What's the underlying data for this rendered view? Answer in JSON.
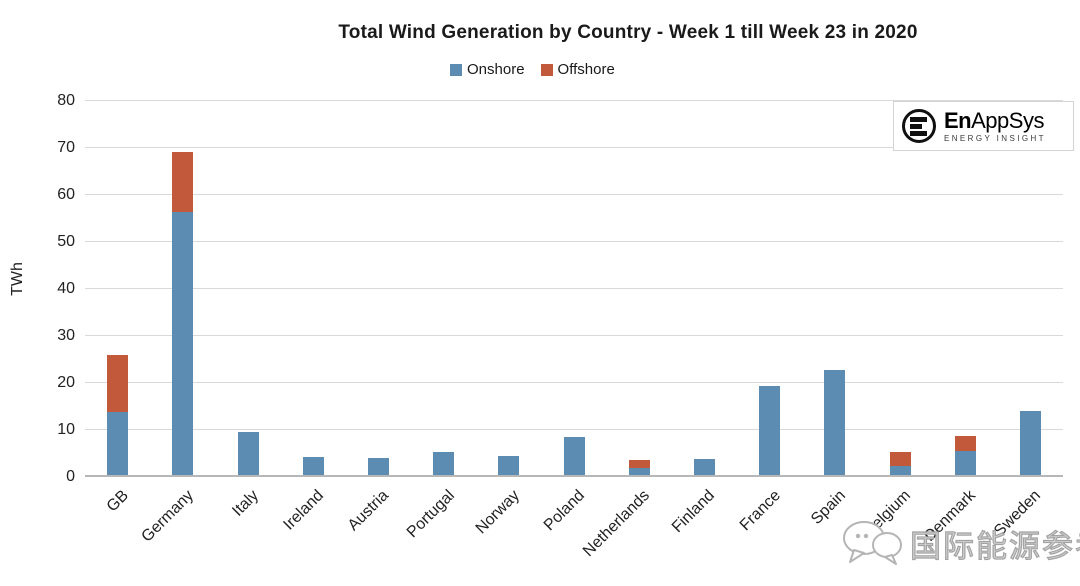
{
  "title": "Total Wind Generation by Country - Week 1 till Week 23 in 2020",
  "y_axis": {
    "label": "TWh"
  },
  "chart_data": {
    "type": "bar",
    "stacked": true,
    "title": "Total Wind Generation by Country - Week 1 till Week 23 in 2020",
    "xlabel": "",
    "ylabel": "TWh",
    "ylim": [
      0,
      80
    ],
    "yticks": [
      0,
      10,
      20,
      30,
      40,
      50,
      60,
      70,
      80
    ],
    "grid": true,
    "legend_position": "top",
    "categories": [
      "GB",
      "Germany",
      "Italy",
      "Ireland",
      "Austria",
      "Portugal",
      "Norway",
      "Poland",
      "Netherlands",
      "Finland",
      "France",
      "Spain",
      "Belgium",
      "Denmark",
      "Sweden"
    ],
    "series": [
      {
        "name": "Onshore",
        "color": "#5d8cb3",
        "values": [
          13.4,
          56.0,
          9.2,
          3.8,
          3.6,
          5.0,
          4.1,
          8.0,
          1.5,
          3.5,
          18.9,
          22.4,
          1.9,
          5.2,
          13.6
        ]
      },
      {
        "name": "Offshore",
        "color": "#c2593b",
        "values": [
          12.2,
          12.7,
          0,
          0,
          0,
          0,
          0,
          0,
          1.6,
          0,
          0,
          0,
          3.1,
          3.2,
          0
        ]
      }
    ]
  },
  "logo": {
    "brand_bold": "En",
    "brand_rest": "AppSys",
    "tagline": "ENERGY INSIGHT"
  },
  "watermark": {
    "text": "国际能源参考"
  },
  "colors": {
    "onshore": "#5d8cb3",
    "offshore": "#c2593b",
    "gridline": "#d9d9d9"
  }
}
